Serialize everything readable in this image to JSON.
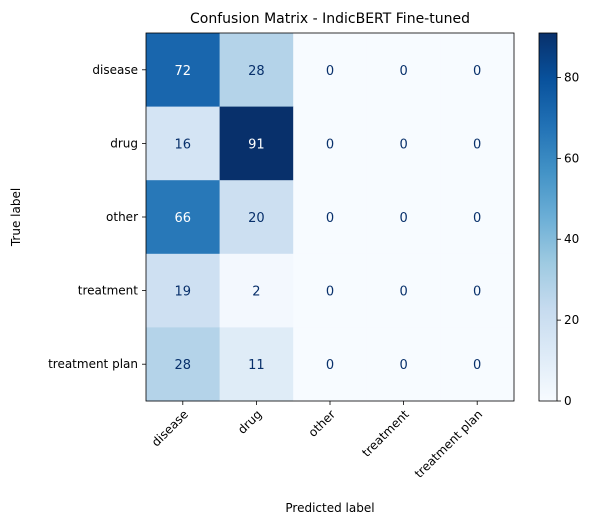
{
  "chart_data": {
    "type": "heatmap",
    "title": "Confusion Matrix - IndicBERT Fine-tuned",
    "xlabel": "Predicted label",
    "ylabel": "True label",
    "row_labels": [
      "disease",
      "drug",
      "other",
      "treatment",
      "treatment plan"
    ],
    "col_labels": [
      "disease",
      "drug",
      "other",
      "treatment",
      "treatment plan"
    ],
    "values": [
      [
        72,
        28,
        0,
        0,
        0
      ],
      [
        16,
        91,
        0,
        0,
        0
      ],
      [
        66,
        20,
        0,
        0,
        0
      ],
      [
        19,
        2,
        0,
        0,
        0
      ],
      [
        28,
        11,
        0,
        0,
        0
      ]
    ],
    "colormap": "Blues",
    "color_range": [
      0,
      91
    ],
    "colorbar_ticks": [
      0,
      20,
      40,
      60,
      80
    ],
    "grid": false
  }
}
